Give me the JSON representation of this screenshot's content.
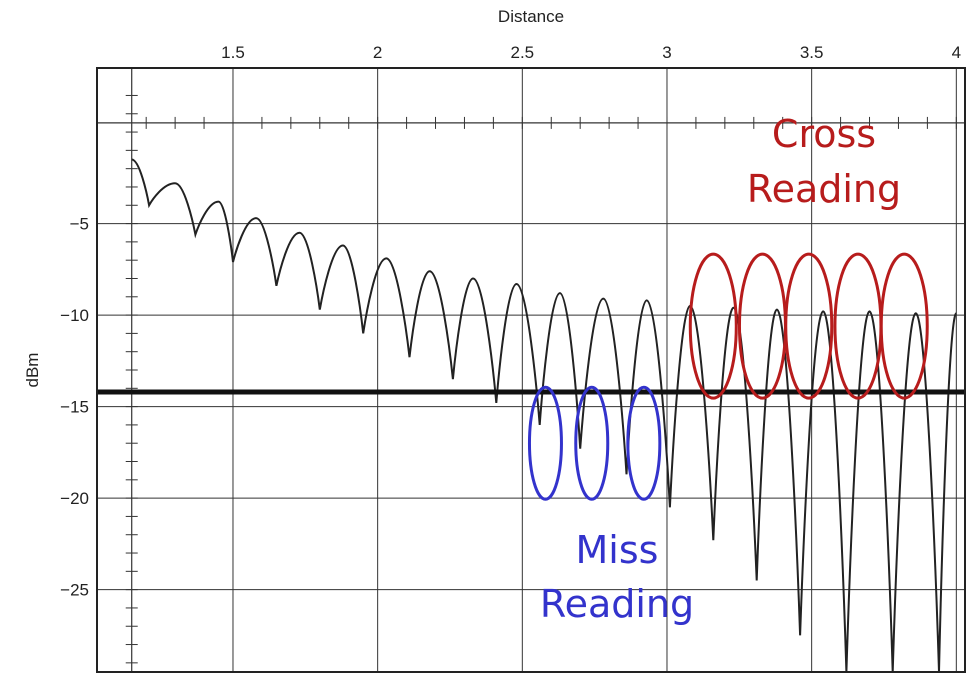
{
  "chart_data": {
    "type": "line",
    "xlabel": "Distance",
    "ylabel": "dBm",
    "xlim": [
      1.03,
      4.03
    ],
    "ylim": [
      -29.5,
      3.5
    ],
    "x_ticks": [
      1.5,
      2,
      2.5,
      3,
      3.5,
      4
    ],
    "x_tick_labels": [
      "1.5",
      "2",
      "2.5",
      "3",
      "3.5",
      "4"
    ],
    "y_ticks": [
      -5,
      -10,
      -15,
      -20,
      -25
    ],
    "y_tick_labels": [
      "−5",
      "−10",
      "−15",
      "−20",
      "−25"
    ],
    "grid": true,
    "threshold": -14.2,
    "series": [
      {
        "type": "oscillating-line",
        "x": [
          1.15,
          1.21,
          1.3,
          1.37,
          1.45,
          1.5,
          1.58,
          1.65,
          1.73,
          1.8,
          1.88,
          1.95,
          2.03,
          2.11,
          2.18,
          2.26,
          2.33,
          2.41,
          2.48,
          2.56,
          2.63,
          2.7,
          2.78,
          2.86,
          2.93,
          3.01,
          3.08,
          3.16,
          3.23,
          3.31,
          3.38,
          3.46,
          3.54,
          3.62,
          3.7,
          3.78,
          3.86,
          3.94,
          4.0
        ],
        "y": [
          -1.5,
          -4.0,
          -2.8,
          -5.6,
          -3.8,
          -7.1,
          -4.7,
          -8.4,
          -5.5,
          -9.7,
          -6.2,
          -11.0,
          -6.9,
          -12.3,
          -7.6,
          -13.5,
          -8.0,
          -14.8,
          -8.3,
          -16.0,
          -8.8,
          -17.3,
          -9.1,
          -18.7,
          -9.2,
          -20.5,
          -9.5,
          -22.3,
          -9.6,
          -24.5,
          -9.7,
          -27.5,
          -9.8,
          -29.5,
          -9.8,
          -29.5,
          -9.9,
          -29.5,
          -9.9
        ]
      }
    ],
    "annotations": [
      {
        "label": "Cross Reading",
        "color": "#b71c1c",
        "ellipses": [
          {
            "x": 3.16,
            "y": -10.6
          },
          {
            "x": 3.33,
            "y": -10.6
          },
          {
            "x": 3.49,
            "y": -10.6
          },
          {
            "x": 3.66,
            "y": -10.6
          },
          {
            "x": 3.82,
            "y": -10.6
          }
        ]
      },
      {
        "label": "Miss Reading",
        "color": "#3333cc",
        "ellipses": [
          {
            "x": 2.58,
            "y": -17.0
          },
          {
            "x": 2.74,
            "y": -17.0
          },
          {
            "x": 2.92,
            "y": -17.0
          }
        ]
      }
    ]
  },
  "texts": {
    "cross_line1": "Cross",
    "cross_line2": "Reading",
    "miss_line1": "Miss",
    "miss_line2": "Reading"
  }
}
